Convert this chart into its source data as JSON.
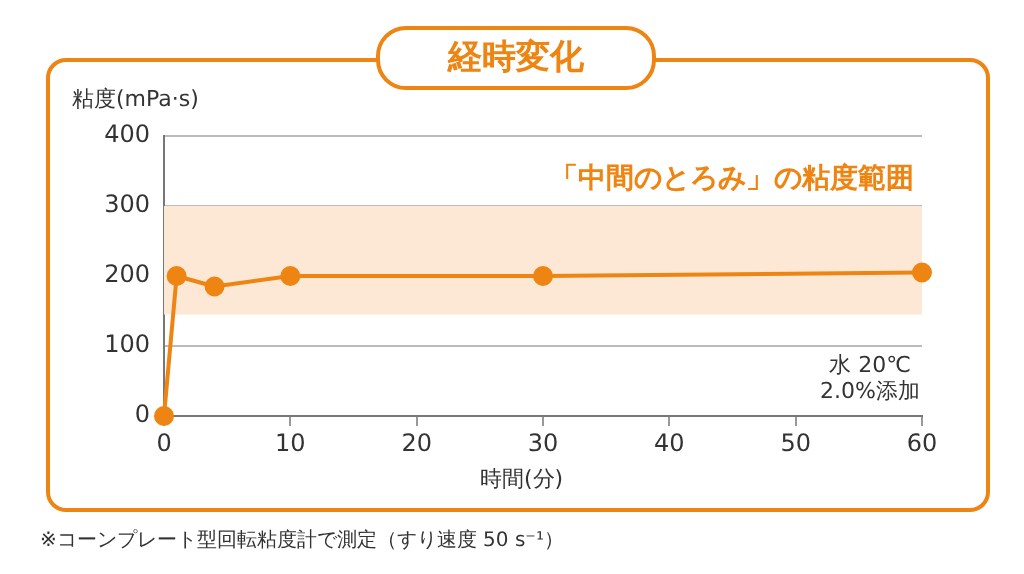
{
  "chart_data": {
    "type": "line",
    "title": "経時変化",
    "ylabel": "粘度(mPa·s)",
    "xlabel": "時間(分)",
    "x": [
      0,
      1,
      4,
      10,
      30,
      60
    ],
    "series": [
      {
        "color": "#ee8412",
        "values": [
          0,
          200,
          185,
          200,
          200,
          205
        ]
      }
    ],
    "xlim": [
      0,
      60
    ],
    "xticks": [
      0,
      10,
      20,
      30,
      40,
      50,
      60
    ],
    "ylim": [
      0,
      400
    ],
    "yticks": [
      0,
      100,
      200,
      300,
      400
    ],
    "grid": "y",
    "marker": "circle",
    "line_style": "solid",
    "legend": false,
    "bands": [
      {
        "axis": "y",
        "from": 145,
        "to": 300,
        "label": "「中間のとろみ」の粘度範囲",
        "color": "#fde8d6"
      }
    ],
    "annotations": [
      "水 20℃\n2.0%添加",
      "※コーンプレート型回転粘度計で測定（すり速度 50 s⁻¹）"
    ]
  }
}
